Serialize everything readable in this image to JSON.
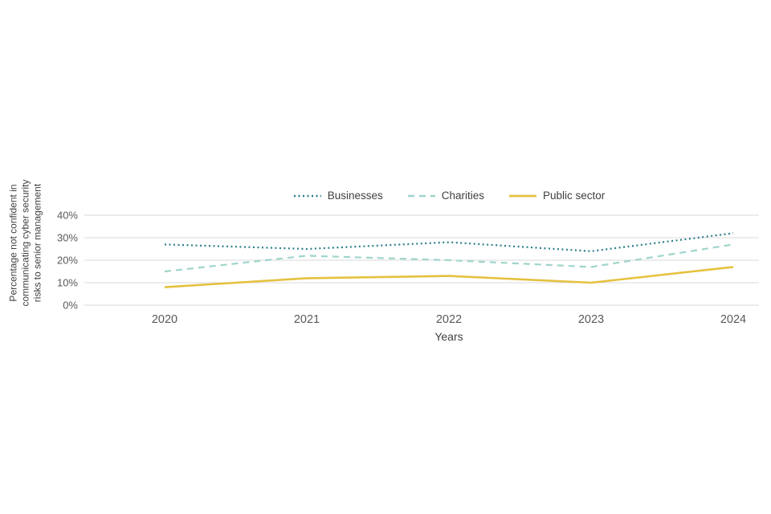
{
  "chart_data": {
    "type": "line",
    "title": "",
    "xlabel": "Years",
    "ylabel_lines": [
      "Percentage not confident in",
      "communicating cyber security",
      "risks to senior management"
    ],
    "categories": [
      "2020",
      "2021",
      "2022",
      "2023",
      "2024"
    ],
    "ylim": [
      0,
      40
    ],
    "ytick_step": 10,
    "ytick_suffix": "%",
    "grid": "horizontal",
    "legend_position": "top-center",
    "series": [
      {
        "name": "Businesses",
        "values": [
          27,
          25,
          28,
          24,
          32
        ],
        "color": "#2a7e8c",
        "style": "dotted"
      },
      {
        "name": "Charities",
        "values": [
          15,
          22,
          20,
          17,
          27
        ],
        "color": "#9fd4cc",
        "style": "dashed"
      },
      {
        "name": "Public sector",
        "values": [
          8,
          12,
          13,
          10,
          17
        ],
        "color": "#e5c13f",
        "style": "solid"
      }
    ]
  },
  "colors": {
    "grid": "#d9d9d9",
    "tick_text": "#595959",
    "label_text": "#404040"
  }
}
